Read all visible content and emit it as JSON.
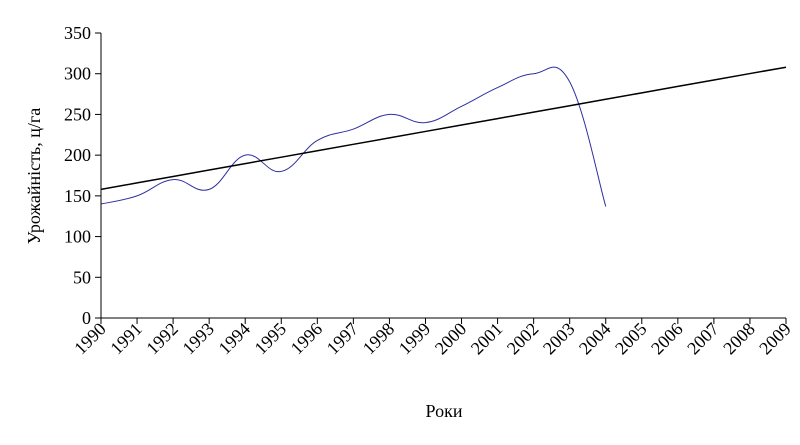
{
  "chart_data": {
    "type": "line",
    "xlabel": "Роки",
    "ylabel": "Урожайність, ц/га",
    "categories": [
      "1990",
      "1991",
      "1992",
      "1993",
      "1994",
      "1995",
      "1996",
      "1997",
      "1998",
      "1999",
      "2000",
      "2001",
      "2002",
      "2003",
      "2004",
      "2005",
      "2006",
      "2007",
      "2008",
      "2009"
    ],
    "ylim": [
      0,
      350
    ],
    "yticks": [
      0,
      50,
      100,
      150,
      200,
      250,
      300,
      350
    ],
    "grid": false,
    "legend": "none",
    "series": [
      {
        "values": [
          140,
          150,
          170,
          158,
          200,
          180,
          218,
          232,
          250,
          240,
          260,
          283,
          300,
          290,
          137,
          null,
          null,
          null,
          null,
          null
        ],
        "color": "#2f2fa0",
        "smooth": true
      },
      {
        "values": [
          158,
          165.9,
          173.8,
          181.7,
          189.6,
          197.5,
          205.4,
          213.3,
          221.2,
          229.1,
          237,
          244.9,
          252.8,
          260.7,
          268.6,
          276.5,
          284.4,
          292.3,
          300.2,
          308
        ],
        "color": "#000000",
        "smooth": false
      }
    ]
  }
}
